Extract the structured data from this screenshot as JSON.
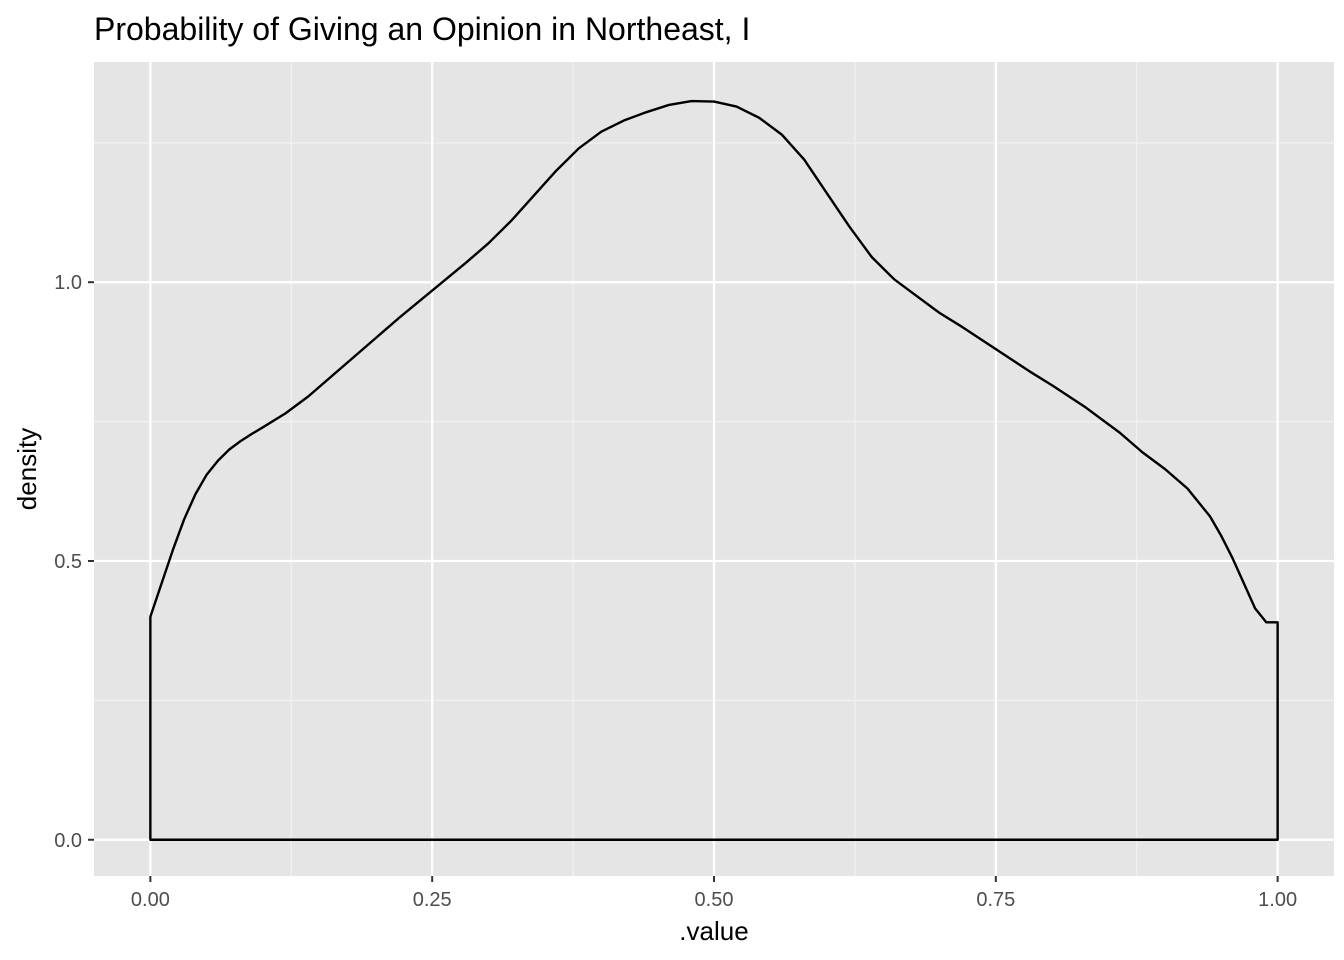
{
  "chart_data": {
    "type": "area",
    "title": "Probability of Giving an Opinion in Northeast, I",
    "xlabel": ".value",
    "ylabel": "density",
    "xlim": [
      -0.05,
      1.05
    ],
    "ylim": [
      -0.065,
      1.395
    ],
    "x_ticks": [
      0.0,
      0.25,
      0.5,
      0.75,
      1.0
    ],
    "x_tick_labels": [
      "0.00",
      "0.25",
      "0.50",
      "0.75",
      "1.00"
    ],
    "y_ticks": [
      0.0,
      0.5,
      1.0
    ],
    "y_tick_labels": [
      "0.0",
      "0.5",
      "1.0"
    ],
    "grid": true,
    "legend": "none",
    "colors": {
      "panel_background": "#E5E5E5",
      "grid_major": "#FFFFFF",
      "grid_minor": "#F2F2F2",
      "line": "#000000",
      "fill": "none",
      "tick_label": "#4D4D4D"
    },
    "series": [
      {
        "x": [
          0.0,
          0.0,
          0.01,
          0.02,
          0.03,
          0.04,
          0.05,
          0.06,
          0.07,
          0.08,
          0.09,
          0.1,
          0.12,
          0.14,
          0.16,
          0.18,
          0.2,
          0.22,
          0.25,
          0.28,
          0.3,
          0.32,
          0.34,
          0.36,
          0.38,
          0.4,
          0.42,
          0.44,
          0.46,
          0.48,
          0.5,
          0.52,
          0.54,
          0.56,
          0.58,
          0.6,
          0.62,
          0.64,
          0.66,
          0.68,
          0.7,
          0.72,
          0.75,
          0.78,
          0.8,
          0.83,
          0.86,
          0.88,
          0.9,
          0.92,
          0.94,
          0.95,
          0.96,
          0.97,
          0.98,
          0.99,
          1.0,
          1.0
        ],
        "values": [
          0.0,
          0.4,
          0.46,
          0.52,
          0.575,
          0.62,
          0.655,
          0.68,
          0.7,
          0.715,
          0.728,
          0.74,
          0.765,
          0.795,
          0.83,
          0.865,
          0.9,
          0.935,
          0.985,
          1.035,
          1.07,
          1.11,
          1.155,
          1.2,
          1.24,
          1.27,
          1.29,
          1.305,
          1.318,
          1.325,
          1.324,
          1.315,
          1.295,
          1.265,
          1.22,
          1.16,
          1.1,
          1.045,
          1.005,
          0.975,
          0.945,
          0.92,
          0.88,
          0.84,
          0.815,
          0.775,
          0.73,
          0.695,
          0.665,
          0.63,
          0.58,
          0.545,
          0.505,
          0.46,
          0.415,
          0.39,
          0.39,
          0.0
        ]
      }
    ]
  }
}
